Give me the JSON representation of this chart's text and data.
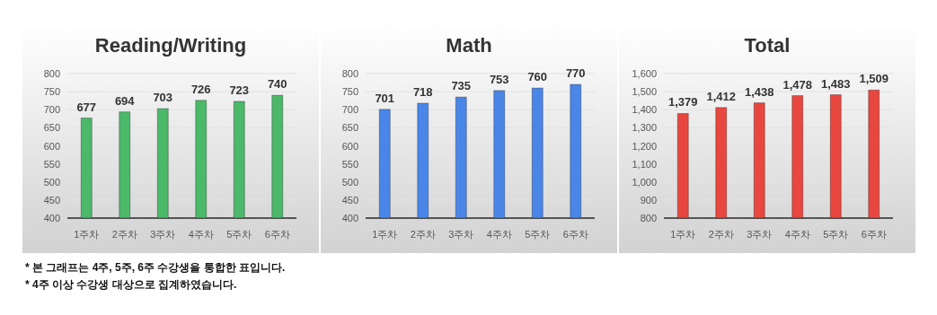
{
  "chart_data": [
    {
      "type": "bar",
      "title": "Reading/Writing",
      "categories": [
        "1주차",
        "2주차",
        "3주차",
        "4주차",
        "5주차",
        "6주차"
      ],
      "values": [
        677,
        694,
        703,
        726,
        723,
        740
      ],
      "color": "#4cb86a",
      "ylim": [
        400,
        800
      ],
      "yticks": [
        400,
        450,
        500,
        550,
        600,
        650,
        700,
        750,
        800
      ],
      "grid": "y",
      "data_labels": true,
      "annotations": [
        "* 본 그래프는 4주, 5주, 6주 수강생을 통합한 표입니다.",
        "* 4주 이상 수강생 대상으로 집계하였습니다."
      ]
    },
    {
      "type": "bar",
      "title": "Math",
      "categories": [
        "1주차",
        "2주차",
        "3주차",
        "4주차",
        "5주차",
        "6주차"
      ],
      "values": [
        701,
        718,
        735,
        753,
        760,
        770
      ],
      "color": "#4a86e8",
      "ylim": [
        400,
        800
      ],
      "yticks": [
        400,
        450,
        500,
        550,
        600,
        650,
        700,
        750,
        800
      ],
      "grid": "y",
      "data_labels": true
    },
    {
      "type": "bar",
      "title": "Total",
      "categories": [
        "1주차",
        "2주차",
        "3주차",
        "4주차",
        "5주차",
        "6주차"
      ],
      "values": [
        1379,
        1412,
        1438,
        1478,
        1483,
        1509
      ],
      "color": "#e8473f",
      "ylim": [
        800,
        1600
      ],
      "yticks": [
        800,
        900,
        {
          "value": 1000,
          "label": "1,000"
        },
        {
          "value": 1100,
          "label": "1,100"
        },
        {
          "value": 1200,
          "label": "1,200"
        },
        {
          "value": 1300,
          "label": "1,300"
        },
        {
          "value": 1400,
          "label": "1,400"
        },
        {
          "value": 1500,
          "label": "1,500"
        },
        {
          "value": 1600,
          "label": "1,600"
        }
      ],
      "grid": "y",
      "value_labels": [
        "1,379",
        "1,412",
        "1,438",
        "1,478",
        "1,483",
        "1,509"
      ]
    }
  ]
}
